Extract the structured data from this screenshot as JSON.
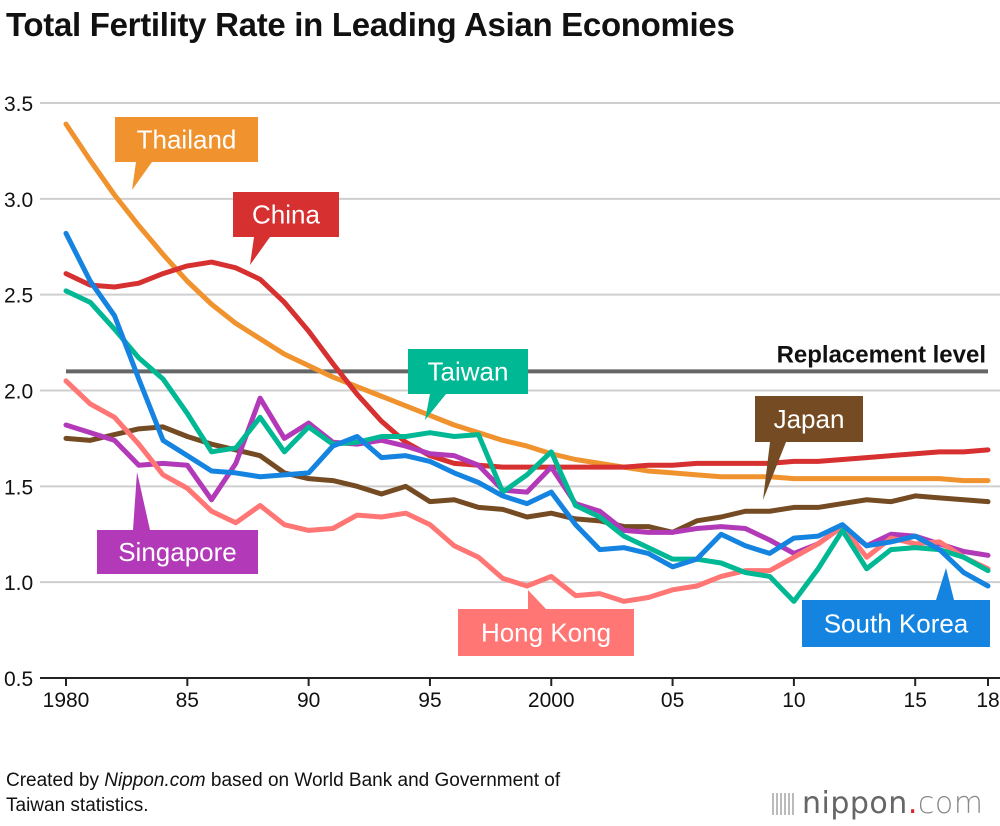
{
  "title": "Total Fertility Rate in Leading Asian Economies",
  "source": {
    "prefix": "Created by ",
    "brand": "Nippon.com",
    "suffix": " based on World Bank and Government of",
    "line2": "Taiwan statistics."
  },
  "logo": {
    "name": "nippon",
    "dot": ".",
    "tld": "com"
  },
  "chart_data": {
    "type": "line",
    "title": "Total Fertility Rate in Leading Asian Economies",
    "xlabel": "",
    "ylabel": "",
    "xlim": [
      1980,
      2018
    ],
    "ylim": [
      0.5,
      3.5
    ],
    "grid": true,
    "y_ticks": [
      "0.5",
      "1.0",
      "1.5",
      "2.0",
      "2.5",
      "3.0",
      "3.5"
    ],
    "x_ticks": [
      {
        "year": 1980,
        "label": "1980"
      },
      {
        "year": 1985,
        "label": "85"
      },
      {
        "year": 1990,
        "label": "90"
      },
      {
        "year": 1995,
        "label": "95"
      },
      {
        "year": 2000,
        "label": "2000"
      },
      {
        "year": 2005,
        "label": "05"
      },
      {
        "year": 2010,
        "label": "10"
      },
      {
        "year": 2015,
        "label": "15"
      },
      {
        "year": 2018,
        "label": "18"
      }
    ],
    "reference_line": {
      "label": "Replacement level",
      "value": 2.1,
      "color": "#666666"
    },
    "x": [
      1980,
      1981,
      1982,
      1983,
      1984,
      1985,
      1986,
      1987,
      1988,
      1989,
      1990,
      1991,
      1992,
      1993,
      1994,
      1995,
      1996,
      1997,
      1998,
      1999,
      2000,
      2001,
      2002,
      2003,
      2004,
      2005,
      2006,
      2007,
      2008,
      2009,
      2010,
      2011,
      2012,
      2013,
      2014,
      2015,
      2016,
      2017,
      2018
    ],
    "series": [
      {
        "name": "Thailand",
        "color": "#F0932E",
        "values": [
          3.39,
          3.2,
          3.02,
          2.86,
          2.71,
          2.57,
          2.45,
          2.35,
          2.27,
          2.19,
          2.13,
          2.07,
          2.02,
          1.97,
          1.92,
          1.87,
          1.82,
          1.78,
          1.74,
          1.71,
          1.67,
          1.64,
          1.62,
          1.6,
          1.58,
          1.57,
          1.56,
          1.55,
          1.55,
          1.55,
          1.54,
          1.54,
          1.54,
          1.54,
          1.54,
          1.54,
          1.54,
          1.53,
          1.53
        ]
      },
      {
        "name": "China",
        "color": "#D63031",
        "values": [
          2.61,
          2.55,
          2.54,
          2.56,
          2.61,
          2.65,
          2.67,
          2.64,
          2.58,
          2.46,
          2.31,
          2.14,
          1.98,
          1.84,
          1.73,
          1.66,
          1.62,
          1.61,
          1.6,
          1.6,
          1.6,
          1.6,
          1.6,
          1.6,
          1.61,
          1.61,
          1.62,
          1.62,
          1.62,
          1.62,
          1.63,
          1.63,
          1.64,
          1.65,
          1.66,
          1.67,
          1.68,
          1.68,
          1.69
        ]
      },
      {
        "name": "Japan",
        "color": "#744B22",
        "values": [
          1.75,
          1.74,
          1.77,
          1.8,
          1.81,
          1.76,
          1.72,
          1.69,
          1.66,
          1.57,
          1.54,
          1.53,
          1.5,
          1.46,
          1.5,
          1.42,
          1.43,
          1.39,
          1.38,
          1.34,
          1.36,
          1.33,
          1.32,
          1.29,
          1.29,
          1.26,
          1.32,
          1.34,
          1.37,
          1.37,
          1.39,
          1.39,
          1.41,
          1.43,
          1.42,
          1.45,
          1.44,
          1.43,
          1.42
        ]
      },
      {
        "name": "Singapore",
        "color": "#B23AB8",
        "values": [
          1.82,
          1.78,
          1.74,
          1.61,
          1.62,
          1.61,
          1.43,
          1.62,
          1.96,
          1.75,
          1.83,
          1.73,
          1.72,
          1.74,
          1.71,
          1.67,
          1.66,
          1.61,
          1.48,
          1.47,
          1.6,
          1.41,
          1.37,
          1.27,
          1.26,
          1.26,
          1.28,
          1.29,
          1.28,
          1.22,
          1.15,
          1.2,
          1.29,
          1.19,
          1.25,
          1.24,
          1.2,
          1.16,
          1.14
        ]
      },
      {
        "name": "Hong Kong",
        "color": "#FF7675",
        "values": [
          2.05,
          1.93,
          1.86,
          1.72,
          1.56,
          1.49,
          1.37,
          1.31,
          1.4,
          1.3,
          1.27,
          1.28,
          1.35,
          1.34,
          1.36,
          1.3,
          1.19,
          1.13,
          1.02,
          0.98,
          1.03,
          0.93,
          0.94,
          0.9,
          0.92,
          0.96,
          0.98,
          1.03,
          1.06,
          1.06,
          1.13,
          1.2,
          1.29,
          1.13,
          1.23,
          1.2,
          1.21,
          1.13,
          1.07
        ]
      },
      {
        "name": "Taiwan",
        "color": "#00B894",
        "values": [
          2.52,
          2.46,
          2.32,
          2.17,
          2.06,
          1.88,
          1.68,
          1.7,
          1.86,
          1.68,
          1.81,
          1.72,
          1.73,
          1.76,
          1.76,
          1.78,
          1.76,
          1.77,
          1.47,
          1.56,
          1.68,
          1.4,
          1.34,
          1.24,
          1.18,
          1.12,
          1.12,
          1.1,
          1.05,
          1.03,
          0.9,
          1.07,
          1.27,
          1.07,
          1.17,
          1.18,
          1.17,
          1.13,
          1.06
        ]
      },
      {
        "name": "South Korea",
        "color": "#1484E0",
        "values": [
          2.82,
          2.57,
          2.39,
          2.06,
          1.74,
          1.66,
          1.58,
          1.57,
          1.55,
          1.56,
          1.57,
          1.71,
          1.76,
          1.65,
          1.66,
          1.63,
          1.57,
          1.52,
          1.45,
          1.41,
          1.47,
          1.3,
          1.17,
          1.18,
          1.15,
          1.08,
          1.12,
          1.25,
          1.19,
          1.15,
          1.23,
          1.24,
          1.3,
          1.19,
          1.21,
          1.24,
          1.17,
          1.05,
          0.98
        ]
      }
    ]
  }
}
